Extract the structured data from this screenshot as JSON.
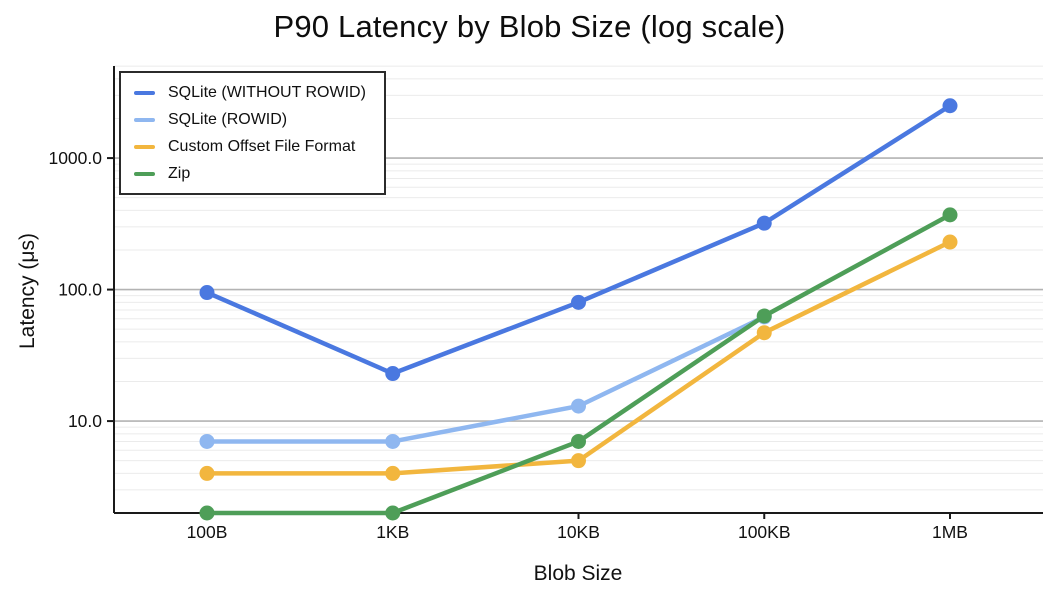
{
  "chart_data": {
    "type": "line",
    "title": "P90 Latency by Blob Size (log scale)",
    "xlabel": "Blob Size",
    "ylabel": "Latency (μs)",
    "categories": [
      "100B",
      "1KB",
      "10KB",
      "100KB",
      "1MB"
    ],
    "series": [
      {
        "name": "SQLite (WITHOUT ROWID)",
        "color": "#4a78e0",
        "values": [
          95,
          23,
          80,
          320,
          2500
        ]
      },
      {
        "name": "SQLite (ROWID)",
        "color": "#8fb7f0",
        "values": [
          7,
          7,
          13,
          62,
          null
        ]
      },
      {
        "name": "Custom Offset File Format",
        "color": "#f2b63e",
        "values": [
          4,
          4,
          5,
          47,
          230
        ]
      },
      {
        "name": "Zip",
        "color": "#4e9e58",
        "values": [
          2,
          2,
          7,
          63,
          370
        ]
      }
    ],
    "y_scale": "log",
    "ylim": [
      2,
      5000
    ],
    "y_tick_labels": [
      {
        "value": 1000,
        "label": "1000.0"
      },
      {
        "value": 100,
        "label": "100.0"
      },
      {
        "value": 10,
        "label": "10.0"
      }
    ],
    "grid": {
      "minor_color": "#ebebeb",
      "major_color": "#b3b3b3",
      "on": true
    },
    "axis_color": "#1a1a1a",
    "legend_position": "top-left"
  }
}
